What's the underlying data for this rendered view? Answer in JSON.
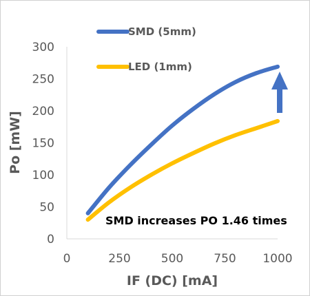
{
  "chart_data": {
    "type": "line",
    "xlabel": "IF (DC) [mA]",
    "ylabel": "Po [mW]",
    "xlim": [
      0,
      1000
    ],
    "ylim": [
      0,
      300
    ],
    "x_ticks": [
      "0",
      "250",
      "500",
      "750",
      "1000"
    ],
    "y_ticks": [
      "0",
      "50",
      "100",
      "150",
      "200",
      "250",
      "300"
    ],
    "grid": false,
    "legend_position": "top-left",
    "series": [
      {
        "name": "SMD (5mm)",
        "color": "#4472C4",
        "x": [
          100,
          200,
          300,
          400,
          500,
          600,
          700,
          800,
          900,
          1000
        ],
        "values": [
          40,
          80,
          115,
          147,
          177,
          203,
          226,
          245,
          259,
          269
        ]
      },
      {
        "name": "LED (1mm)",
        "color": "#FFC000",
        "x": [
          100,
          200,
          300,
          400,
          500,
          600,
          700,
          800,
          900,
          1000
        ],
        "values": [
          30,
          57,
          80,
          100,
          118,
          134,
          149,
          162,
          173,
          184
        ]
      }
    ],
    "annotation": "SMD increases PO 1.46 times",
    "arrow_color": "#4472C4"
  }
}
